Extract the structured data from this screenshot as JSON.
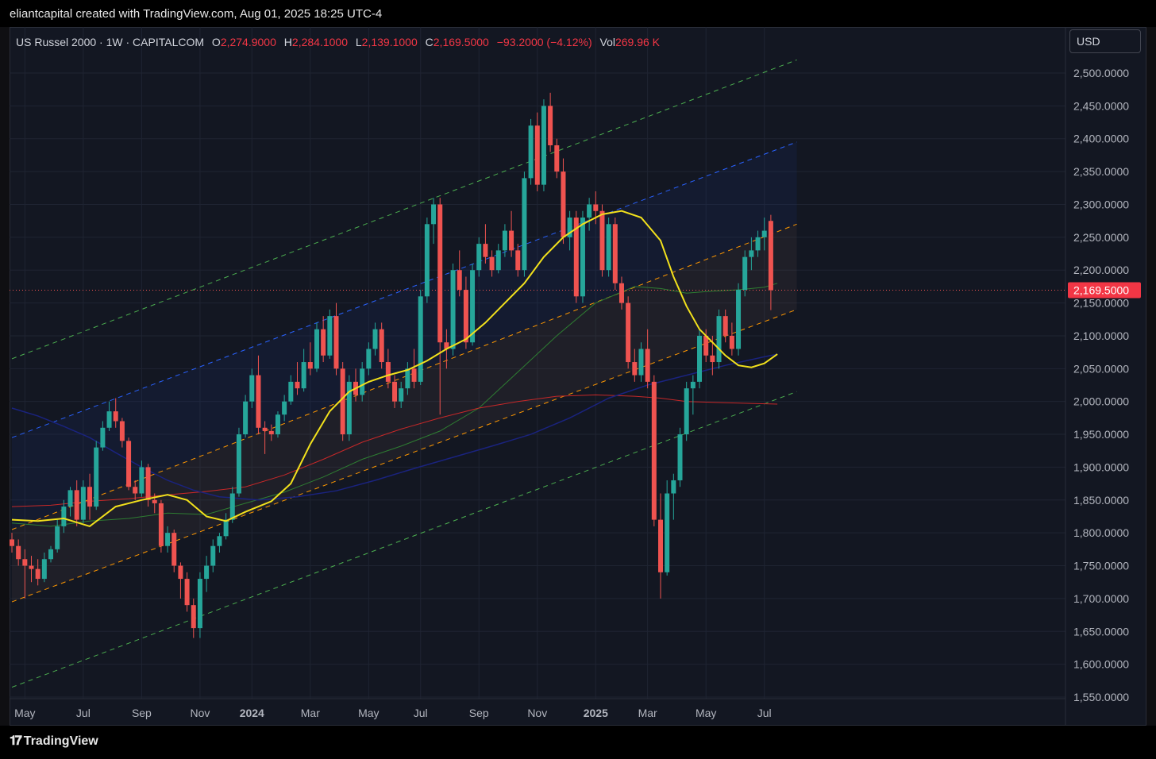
{
  "header": {
    "attribution": "eliantcapital created with TradingView.com, Aug 01, 2025 18:25 UTC-4"
  },
  "legend": {
    "symbol": "US Russel 2000 · 1W · CAPITALCOM",
    "open_label": "O",
    "open": "2,274.9000",
    "high_label": "H",
    "high": "2,284.1000",
    "low_label": "L",
    "low": "2,139.1000",
    "close_label": "C",
    "close": "2,169.5000",
    "change": "−93.2000 (−4.12%)",
    "vol_label": "Vol",
    "vol": "269.96 K"
  },
  "currency_button": "USD",
  "price_tag": "2,169.5000",
  "footer": {
    "logo_text": "TradingView"
  },
  "colors": {
    "up": "#26a69a",
    "down": "#ef5350",
    "background": "#131722"
  },
  "chart_data": {
    "type": "candlestick",
    "ylim": [
      1550,
      2520
    ],
    "y_ticks": [
      "2,500.0000",
      "2,450.0000",
      "2,400.0000",
      "2,350.0000",
      "2,300.0000",
      "2,250.0000",
      "2,200.0000",
      "2,150.0000",
      "2,100.0000",
      "2,050.0000",
      "2,000.0000",
      "1,950.0000",
      "1,900.0000",
      "1,850.0000",
      "1,800.0000",
      "1,750.0000",
      "1,700.0000",
      "1,650.0000",
      "1,600.0000",
      "1,550.0000"
    ],
    "y_tick_values": [
      2500,
      2450,
      2400,
      2350,
      2300,
      2250,
      2200,
      2150,
      2100,
      2050,
      2000,
      1950,
      1900,
      1850,
      1800,
      1750,
      1700,
      1650,
      1600,
      1550
    ],
    "x_ticks": [
      {
        "label": "May",
        "week": 2,
        "bold": false
      },
      {
        "label": "Jul",
        "week": 11,
        "bold": false
      },
      {
        "label": "Sep",
        "week": 20,
        "bold": false
      },
      {
        "label": "Nov",
        "week": 29,
        "bold": false
      },
      {
        "label": "2024",
        "week": 37,
        "bold": true
      },
      {
        "label": "Mar",
        "week": 46,
        "bold": false
      },
      {
        "label": "May",
        "week": 55,
        "bold": false
      },
      {
        "label": "Jul",
        "week": 63,
        "bold": false
      },
      {
        "label": "Sep",
        "week": 72,
        "bold": false
      },
      {
        "label": "Nov",
        "week": 81,
        "bold": false
      },
      {
        "label": "2025",
        "week": 90,
        "bold": true
      },
      {
        "label": "Mar",
        "week": 98,
        "bold": false
      },
      {
        "label": "May",
        "week": 107,
        "bold": false
      },
      {
        "label": "Jul",
        "week": 116,
        "bold": false
      }
    ],
    "candles": [
      [
        1790,
        1800,
        1770,
        1780
      ],
      [
        1780,
        1790,
        1750,
        1760
      ],
      [
        1760,
        1775,
        1700,
        1750
      ],
      [
        1750,
        1765,
        1725,
        1745
      ],
      [
        1745,
        1760,
        1720,
        1730
      ],
      [
        1730,
        1770,
        1725,
        1760
      ],
      [
        1760,
        1780,
        1755,
        1775
      ],
      [
        1775,
        1820,
        1770,
        1810
      ],
      [
        1810,
        1850,
        1800,
        1840
      ],
      [
        1840,
        1870,
        1825,
        1865
      ],
      [
        1865,
        1880,
        1810,
        1820
      ],
      [
        1820,
        1880,
        1815,
        1870
      ],
      [
        1870,
        1890,
        1820,
        1840
      ],
      [
        1840,
        1940,
        1835,
        1930
      ],
      [
        1930,
        1970,
        1925,
        1960
      ],
      [
        1960,
        2000,
        1955,
        1985
      ],
      [
        1985,
        2005,
        1960,
        1970
      ],
      [
        1970,
        1975,
        1930,
        1940
      ],
      [
        1940,
        1945,
        1865,
        1870
      ],
      [
        1870,
        1880,
        1850,
        1860
      ],
      [
        1860,
        1910,
        1855,
        1900
      ],
      [
        1900,
        1905,
        1840,
        1850
      ],
      [
        1850,
        1860,
        1830,
        1845
      ],
      [
        1845,
        1850,
        1770,
        1780
      ],
      [
        1780,
        1810,
        1770,
        1800
      ],
      [
        1800,
        1805,
        1740,
        1750
      ],
      [
        1750,
        1755,
        1700,
        1730
      ],
      [
        1730,
        1740,
        1680,
        1690
      ],
      [
        1690,
        1700,
        1640,
        1655
      ],
      [
        1655,
        1740,
        1640,
        1730
      ],
      [
        1730,
        1765,
        1710,
        1750
      ],
      [
        1750,
        1790,
        1740,
        1780
      ],
      [
        1780,
        1800,
        1770,
        1795
      ],
      [
        1795,
        1830,
        1790,
        1820
      ],
      [
        1820,
        1870,
        1815,
        1860
      ],
      [
        1860,
        1960,
        1855,
        1950
      ],
      [
        1950,
        2010,
        1945,
        2000
      ],
      [
        2000,
        2050,
        1990,
        2040
      ],
      [
        2040,
        2070,
        1950,
        1960
      ],
      [
        1960,
        1970,
        1920,
        1955
      ],
      [
        1955,
        1965,
        1940,
        1950
      ],
      [
        1950,
        1985,
        1945,
        1980
      ],
      [
        1980,
        2010,
        1970,
        2000
      ],
      [
        2000,
        2040,
        1995,
        2030
      ],
      [
        2030,
        2060,
        2010,
        2020
      ],
      [
        2020,
        2080,
        2015,
        2060
      ],
      [
        2060,
        2090,
        2040,
        2050
      ],
      [
        2050,
        2120,
        2045,
        2110
      ],
      [
        2110,
        2130,
        2060,
        2070
      ],
      [
        2070,
        2140,
        2065,
        2130
      ],
      [
        2130,
        2150,
        2040,
        2050
      ],
      [
        2050,
        2060,
        1940,
        1950
      ],
      [
        1950,
        2040,
        1940,
        2030
      ],
      [
        2030,
        2050,
        2000,
        2010
      ],
      [
        2010,
        2060,
        2000,
        2050
      ],
      [
        2050,
        2090,
        2040,
        2080
      ],
      [
        2080,
        2120,
        2070,
        2110
      ],
      [
        2110,
        2120,
        2050,
        2060
      ],
      [
        2060,
        2080,
        2020,
        2030
      ],
      [
        2030,
        2040,
        1990,
        2000
      ],
      [
        2000,
        2030,
        1990,
        2020
      ],
      [
        2020,
        2060,
        2010,
        2050
      ],
      [
        2050,
        2080,
        2020,
        2030
      ],
      [
        2030,
        2170,
        2025,
        2160
      ],
      [
        2160,
        2280,
        2150,
        2270
      ],
      [
        2270,
        2310,
        2240,
        2300
      ],
      [
        2300,
        2310,
        1980,
        2090
      ],
      [
        2090,
        2110,
        2050,
        2080
      ],
      [
        2080,
        2210,
        2070,
        2200
      ],
      [
        2200,
        2230,
        2160,
        2170
      ],
      [
        2170,
        2190,
        2080,
        2090
      ],
      [
        2090,
        2210,
        2085,
        2200
      ],
      [
        2200,
        2250,
        2190,
        2240
      ],
      [
        2240,
        2270,
        2210,
        2220
      ],
      [
        2220,
        2230,
        2190,
        2200
      ],
      [
        2200,
        2240,
        2195,
        2230
      ],
      [
        2230,
        2270,
        2220,
        2260
      ],
      [
        2260,
        2290,
        2220,
        2230
      ],
      [
        2230,
        2240,
        2190,
        2200
      ],
      [
        2200,
        2350,
        2190,
        2340
      ],
      [
        2340,
        2430,
        2330,
        2420
      ],
      [
        2420,
        2440,
        2320,
        2330
      ],
      [
        2330,
        2460,
        2320,
        2450
      ],
      [
        2450,
        2470,
        2380,
        2390
      ],
      [
        2390,
        2400,
        2340,
        2350
      ],
      [
        2350,
        2370,
        2240,
        2250
      ],
      [
        2250,
        2290,
        2230,
        2280
      ],
      [
        2280,
        2290,
        2150,
        2160
      ],
      [
        2160,
        2290,
        2150,
        2280
      ],
      [
        2280,
        2310,
        2260,
        2300
      ],
      [
        2300,
        2320,
        2270,
        2290
      ],
      [
        2290,
        2300,
        2190,
        2200
      ],
      [
        2200,
        2280,
        2190,
        2270
      ],
      [
        2270,
        2280,
        2170,
        2180
      ],
      [
        2180,
        2190,
        2140,
        2150
      ],
      [
        2150,
        2160,
        2050,
        2060
      ],
      [
        2060,
        2080,
        2030,
        2040
      ],
      [
        2040,
        2090,
        2030,
        2080
      ],
      [
        2080,
        2110,
        2020,
        2030
      ],
      [
        2030,
        2040,
        1810,
        1820
      ],
      [
        1820,
        1860,
        1700,
        1740
      ],
      [
        1740,
        1880,
        1735,
        1860
      ],
      [
        1860,
        1890,
        1820,
        1880
      ],
      [
        1880,
        1960,
        1870,
        1950
      ],
      [
        1950,
        2030,
        1940,
        2020
      ],
      [
        2020,
        2040,
        1980,
        2030
      ],
      [
        2030,
        2110,
        2020,
        2100
      ],
      [
        2100,
        2110,
        2060,
        2070
      ],
      [
        2070,
        2100,
        2040,
        2060
      ],
      [
        2060,
        2140,
        2050,
        2130
      ],
      [
        2130,
        2140,
        2090,
        2100
      ],
      [
        2100,
        2120,
        2070,
        2080
      ],
      [
        2080,
        2180,
        2070,
        2170
      ],
      [
        2170,
        2230,
        2160,
        2220
      ],
      [
        2220,
        2250,
        2200,
        2230
      ],
      [
        2230,
        2260,
        2220,
        2250
      ],
      [
        2250,
        2280,
        2230,
        2260
      ],
      [
        2274.9,
        2284.1,
        2139.1,
        2169.5
      ]
    ],
    "series": [
      {
        "kind": "sma",
        "color": "#f2e11c",
        "width": 2,
        "points": [
          [
            0,
            1820
          ],
          [
            4,
            1818
          ],
          [
            8,
            1822
          ],
          [
            12,
            1810
          ],
          [
            16,
            1840
          ],
          [
            20,
            1850
          ],
          [
            24,
            1858
          ],
          [
            27,
            1850
          ],
          [
            30,
            1825
          ],
          [
            33,
            1818
          ],
          [
            36,
            1832
          ],
          [
            40,
            1848
          ],
          [
            43,
            1875
          ],
          [
            46,
            1935
          ],
          [
            49,
            1985
          ],
          [
            52,
            2015
          ],
          [
            55,
            2030
          ],
          [
            58,
            2040
          ],
          [
            61,
            2048
          ],
          [
            64,
            2062
          ],
          [
            67,
            2080
          ],
          [
            70,
            2095
          ],
          [
            73,
            2120
          ],
          [
            76,
            2150
          ],
          [
            79,
            2180
          ],
          [
            82,
            2220
          ],
          [
            85,
            2250
          ],
          [
            88,
            2270
          ],
          [
            91,
            2285
          ],
          [
            94,
            2290
          ],
          [
            97,
            2280
          ],
          [
            100,
            2245
          ],
          [
            102,
            2190
          ],
          [
            104,
            2145
          ],
          [
            106,
            2110
          ],
          [
            108,
            2090
          ],
          [
            110,
            2070
          ],
          [
            112,
            2055
          ],
          [
            114,
            2052
          ],
          [
            116,
            2058
          ],
          [
            118,
            2072
          ]
        ]
      },
      {
        "kind": "sma",
        "color": "#2e7d32",
        "width": 1,
        "points": [
          [
            0,
            1815
          ],
          [
            6,
            1810
          ],
          [
            12,
            1818
          ],
          [
            18,
            1822
          ],
          [
            24,
            1830
          ],
          [
            30,
            1828
          ],
          [
            36,
            1845
          ],
          [
            42,
            1862
          ],
          [
            48,
            1885
          ],
          [
            54,
            1912
          ],
          [
            60,
            1932
          ],
          [
            66,
            1955
          ],
          [
            72,
            1990
          ],
          [
            78,
            2045
          ],
          [
            84,
            2100
          ],
          [
            90,
            2150
          ],
          [
            96,
            2175
          ],
          [
            100,
            2172
          ],
          [
            104,
            2165
          ],
          [
            108,
            2168
          ],
          [
            112,
            2170
          ],
          [
            116,
            2174
          ],
          [
            118,
            2180
          ]
        ]
      },
      {
        "kind": "sma",
        "color": "#c62828",
        "width": 1,
        "points": [
          [
            0,
            1840
          ],
          [
            6,
            1842
          ],
          [
            12,
            1848
          ],
          [
            18,
            1852
          ],
          [
            24,
            1858
          ],
          [
            30,
            1863
          ],
          [
            36,
            1870
          ],
          [
            42,
            1888
          ],
          [
            48,
            1912
          ],
          [
            54,
            1938
          ],
          [
            60,
            1958
          ],
          [
            66,
            1975
          ],
          [
            72,
            1990
          ],
          [
            78,
            2000
          ],
          [
            84,
            2008
          ],
          [
            90,
            2010
          ],
          [
            96,
            2008
          ],
          [
            100,
            2005
          ],
          [
            104,
            2000
          ],
          [
            110,
            1998
          ],
          [
            118,
            1996
          ]
        ]
      },
      {
        "kind": "sma",
        "color": "#1a237e",
        "width": 1.5,
        "points": [
          [
            0,
            1990
          ],
          [
            4,
            1978
          ],
          [
            8,
            1962
          ],
          [
            12,
            1945
          ],
          [
            16,
            1922
          ],
          [
            20,
            1900
          ],
          [
            24,
            1880
          ],
          [
            28,
            1865
          ],
          [
            32,
            1855
          ],
          [
            38,
            1850
          ],
          [
            44,
            1855
          ],
          [
            50,
            1864
          ],
          [
            56,
            1880
          ],
          [
            62,
            1898
          ],
          [
            68,
            1915
          ],
          [
            74,
            1932
          ],
          [
            80,
            1950
          ],
          [
            86,
            1975
          ],
          [
            92,
            2005
          ],
          [
            98,
            2025
          ],
          [
            104,
            2040
          ],
          [
            110,
            2055
          ],
          [
            116,
            2068
          ],
          [
            118,
            2072
          ]
        ]
      }
    ],
    "channel": {
      "start_week": 0,
      "end_week": 121,
      "lines": [
        {
          "start": 2065,
          "end": 2520,
          "color": "#4caf50",
          "dash": "6,5"
        },
        {
          "start": 1945,
          "end": 2395,
          "color": "#2962ff",
          "dash": "6,5"
        },
        {
          "start": 1805,
          "end": 2270,
          "color": "#ff9800",
          "dash": "6,5"
        },
        {
          "start": 1695,
          "end": 2140,
          "color": "#ff9800",
          "dash": "6,5"
        },
        {
          "start": 1565,
          "end": 2015,
          "color": "#4caf50",
          "dash": "6,5"
        }
      ],
      "fills": [
        {
          "top": 1,
          "bottom": 2,
          "color": "#1e3a8a",
          "opacity": 0.14
        },
        {
          "top": 2,
          "bottom": 3,
          "color": "#8d6e63",
          "opacity": 0.1
        }
      ]
    },
    "last_price_line": 2169.5
  }
}
